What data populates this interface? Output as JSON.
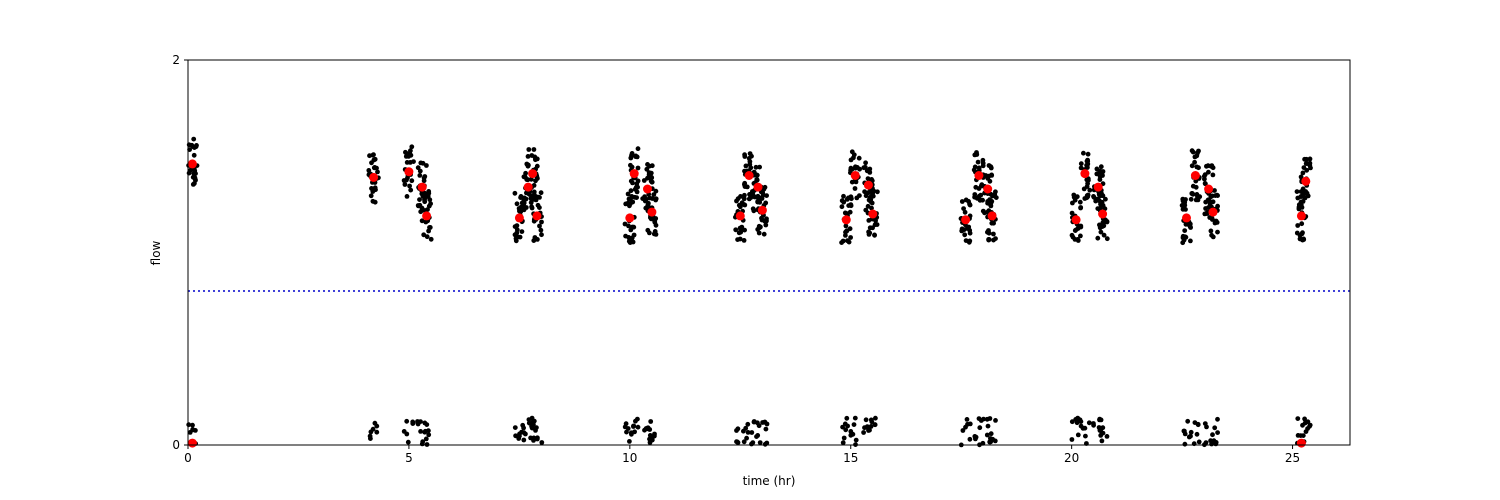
{
  "chart_data": {
    "type": "scatter",
    "title": "",
    "xlabel": "time (hr)",
    "ylabel": "flow",
    "xlim": [
      0,
      26.3
    ],
    "ylim": [
      0,
      2
    ],
    "x_ticks": [
      0,
      5,
      10,
      15,
      20,
      25
    ],
    "y_ticks": [
      0,
      2
    ],
    "grid": false,
    "threshold": {
      "y": 0.8,
      "style": "dotted",
      "color": "#0000cc"
    },
    "colors": {
      "raw": "#000000",
      "highlight": "#ff0000"
    },
    "highlight_points": [
      {
        "x": 0.1,
        "y": 1.46
      },
      {
        "x": 0.1,
        "y": 0.01
      },
      {
        "x": 4.2,
        "y": 1.39
      },
      {
        "x": 5.0,
        "y": 1.42
      },
      {
        "x": 5.3,
        "y": 1.34
      },
      {
        "x": 5.4,
        "y": 1.19
      },
      {
        "x": 7.5,
        "y": 1.18
      },
      {
        "x": 7.8,
        "y": 1.41
      },
      {
        "x": 7.7,
        "y": 1.34
      },
      {
        "x": 7.9,
        "y": 1.19
      },
      {
        "x": 10.0,
        "y": 1.18
      },
      {
        "x": 10.1,
        "y": 1.41
      },
      {
        "x": 10.4,
        "y": 1.33
      },
      {
        "x": 10.5,
        "y": 1.21
      },
      {
        "x": 12.5,
        "y": 1.19
      },
      {
        "x": 12.7,
        "y": 1.4
      },
      {
        "x": 12.9,
        "y": 1.34
      },
      {
        "x": 13.0,
        "y": 1.22
      },
      {
        "x": 14.9,
        "y": 1.17
      },
      {
        "x": 15.1,
        "y": 1.4
      },
      {
        "x": 15.4,
        "y": 1.35
      },
      {
        "x": 15.5,
        "y": 1.2
      },
      {
        "x": 17.6,
        "y": 1.17
      },
      {
        "x": 17.9,
        "y": 1.4
      },
      {
        "x": 18.1,
        "y": 1.33
      },
      {
        "x": 18.2,
        "y": 1.19
      },
      {
        "x": 20.1,
        "y": 1.17
      },
      {
        "x": 20.3,
        "y": 1.41
      },
      {
        "x": 20.6,
        "y": 1.34
      },
      {
        "x": 20.7,
        "y": 1.2
      },
      {
        "x": 22.6,
        "y": 1.18
      },
      {
        "x": 22.8,
        "y": 1.4
      },
      {
        "x": 23.1,
        "y": 1.33
      },
      {
        "x": 23.2,
        "y": 1.21
      },
      {
        "x": 25.2,
        "y": 1.19
      },
      {
        "x": 25.3,
        "y": 1.37
      },
      {
        "x": 25.2,
        "y": 0.01
      }
    ]
  }
}
